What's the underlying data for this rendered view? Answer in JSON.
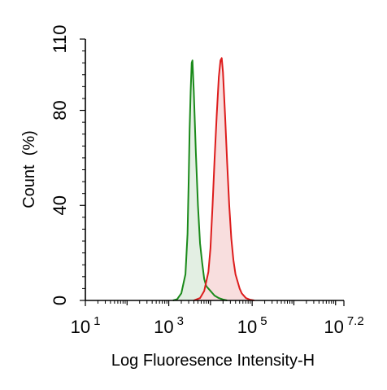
{
  "chart_data": {
    "type": "area",
    "xlabel": "Log Fluoresence Intensity-H",
    "ylabel": "Count  (%)",
    "x_scale": "log",
    "xlim": [
      10,
      15848931.92
    ],
    "ylim": [
      0,
      110
    ],
    "y_ticks": [
      {
        "value": 0,
        "label": "0"
      },
      {
        "value": 40,
        "label": "40"
      },
      {
        "value": 80,
        "label": "80"
      },
      {
        "value": 110,
        "label": "110"
      }
    ],
    "x_ticks": [
      {
        "value": 10,
        "base": "10",
        "exp": "1"
      },
      {
        "value": 1000,
        "base": "10",
        "exp": "3"
      },
      {
        "value": 100000,
        "base": "10",
        "exp": "5"
      },
      {
        "value": 15848931.92,
        "base": "10",
        "exp": "7.2"
      }
    ],
    "series": [
      {
        "color": "#1a8a1a",
        "fill": "#e3efe3",
        "points": [
          [
            1259,
            0
          ],
          [
            1585,
            0.5
          ],
          [
            2000,
            3
          ],
          [
            2512,
            11
          ],
          [
            2818,
            28
          ],
          [
            3000,
            50
          ],
          [
            3162,
            72
          ],
          [
            3350,
            88
          ],
          [
            3548,
            100
          ],
          [
            3700,
            101
          ],
          [
            3981,
            88
          ],
          [
            4467,
            62
          ],
          [
            5012,
            40
          ],
          [
            5623,
            24
          ],
          [
            6310,
            16
          ],
          [
            7079,
            9
          ],
          [
            7943,
            6
          ],
          [
            8913,
            5
          ],
          [
            10000,
            4
          ],
          [
            11220,
            3
          ],
          [
            12589,
            2
          ],
          [
            15849,
            1
          ],
          [
            19953,
            0.4
          ],
          [
            25119,
            0
          ]
        ]
      },
      {
        "color": "#dd1c1c",
        "fill": "#f8dede",
        "points": [
          [
            3981,
            0
          ],
          [
            5623,
            1
          ],
          [
            7079,
            4
          ],
          [
            8913,
            12
          ],
          [
            10000,
            22
          ],
          [
            11220,
            40
          ],
          [
            12589,
            60
          ],
          [
            14125,
            78
          ],
          [
            15849,
            94
          ],
          [
            17378,
            101
          ],
          [
            18621,
            102
          ],
          [
            19953,
            96
          ],
          [
            22387,
            78
          ],
          [
            25119,
            58
          ],
          [
            28184,
            40
          ],
          [
            31623,
            26
          ],
          [
            35481,
            17
          ],
          [
            39811,
            11
          ],
          [
            44668,
            8
          ],
          [
            50119,
            5
          ],
          [
            56234,
            3
          ],
          [
            63096,
            2
          ],
          [
            70795,
            1
          ],
          [
            89125,
            0.3
          ],
          [
            112202,
            0
          ]
        ]
      }
    ]
  }
}
